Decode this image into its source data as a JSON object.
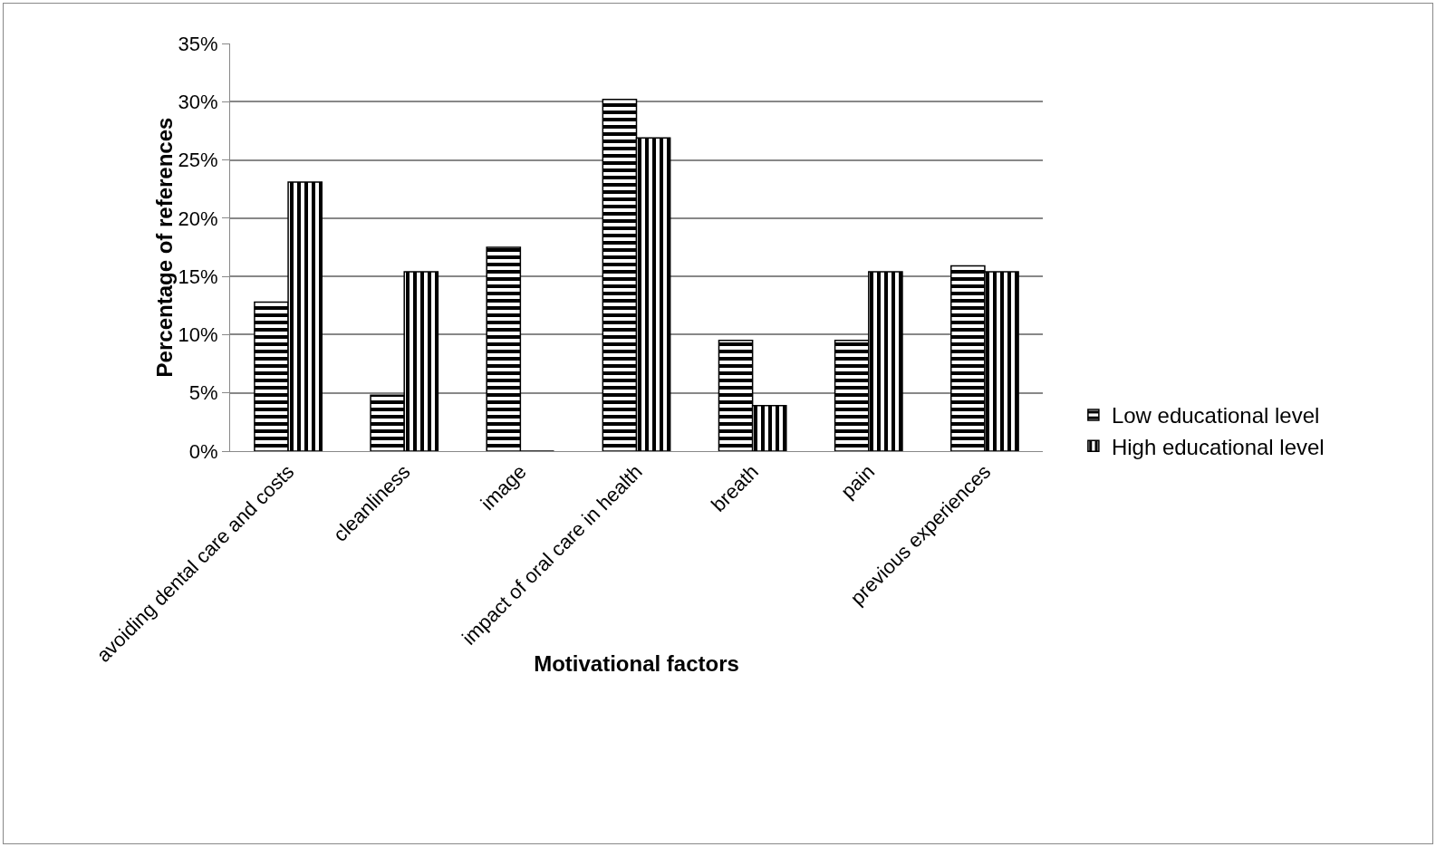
{
  "chart_data": {
    "type": "bar",
    "categories": [
      "avoiding dental care and costs",
      "cleanliness",
      "image",
      "impact of oral care in health",
      "breath",
      "pain",
      "previous experiences"
    ],
    "series": [
      {
        "name": "Low educational level",
        "color": "#000000",
        "values": [
          12.8,
          4.8,
          17.5,
          30.2,
          9.5,
          9.5,
          15.9
        ]
      },
      {
        "name": "High educational level",
        "color": "#000000",
        "values": [
          23.1,
          15.4,
          0,
          26.9,
          3.9,
          15.4,
          15.4
        ]
      }
    ],
    "xlabel": "Motivational factors",
    "ylabel": "Percentage of references",
    "ylim": [
      0,
      35
    ],
    "yticks": [
      {
        "value": 0,
        "label": "0%"
      },
      {
        "value": 5,
        "label": "5%"
      },
      {
        "value": 10,
        "label": "10%"
      },
      {
        "value": 15,
        "label": "15%"
      },
      {
        "value": 20,
        "label": "20%"
      },
      {
        "value": 25,
        "label": "25%"
      },
      {
        "value": 30,
        "label": "30%"
      },
      {
        "value": 35,
        "label": "35%"
      }
    ],
    "grid": "y",
    "legend": "right"
  }
}
